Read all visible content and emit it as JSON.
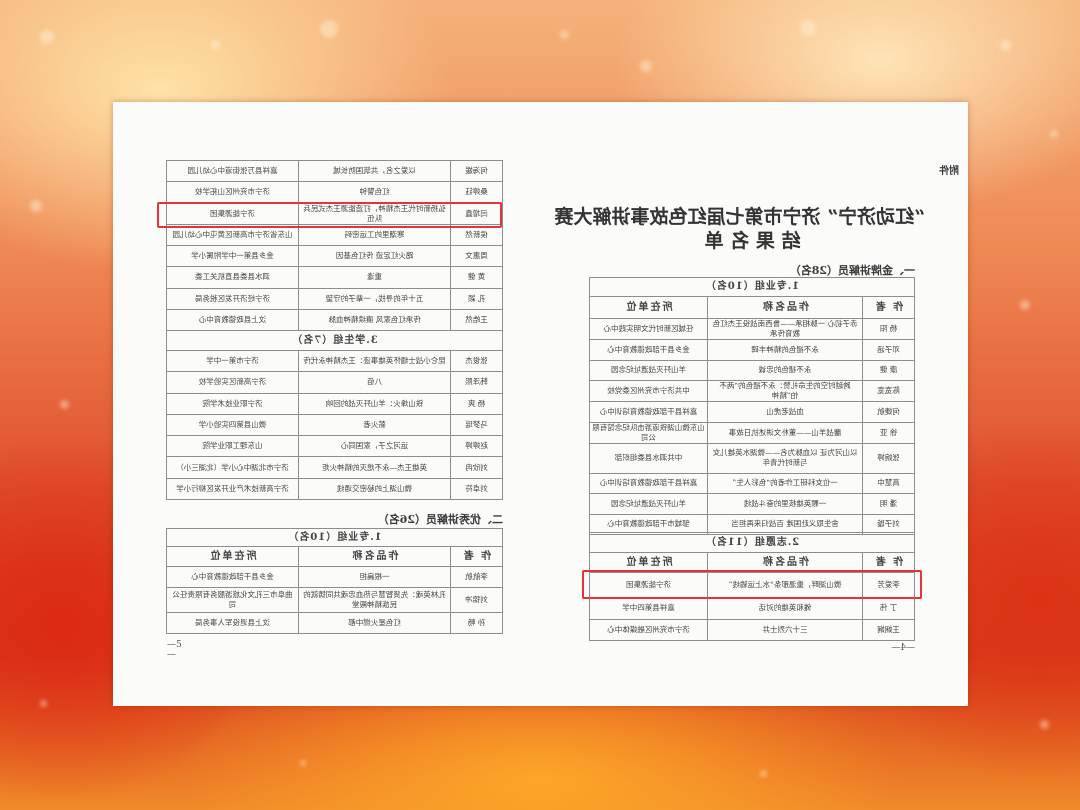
{
  "page4": {
    "attachment_label": "附件",
    "title_line1": "“红动济宁” 济宁市第七届红色故事讲解大赛",
    "title_line2": "结 果 名 单",
    "section": "一、金牌讲解员（28名）",
    "page_number": "—4—",
    "columns": [
      "作 者",
      "作品名称",
      "所在单位"
    ],
    "groups": [
      {
        "title": "1.专业组（10名）",
        "rows": [
          [
            "杨 阳",
            "赤子初心 一脉相承——鲁西南战役王杰红色教育传承",
            "任城区新时代文明实践中心"
          ],
          [
            "邓子涵",
            "永不褪色的精神丰碑",
            "金乡县干部政德教育中心"
          ],
          [
            "康 健",
            "永不褪色的忠诚",
            "羊山歼灭战遗址纪念园"
          ],
          [
            "陈宽宽",
            "跨越时空的生命礼赞：永不褪色的“两不怕”精神",
            "中共济宁市兖州区委党校"
          ],
          [
            "何婕航",
            "血战老虎山",
            "嘉祥县干部政德教育培训中心"
          ],
          [
            "徐 亚",
            "鏖战羊山——董朴文讲述抗日故事",
            "山东微山湖铁道游击队纪念馆有限公司"
          ],
          [
            "张婉婷",
            "以山河为证 以血脉为名——微湖水英雄儿女与新时代青年",
            "中共泗水县委组织部"
          ],
          [
            "高慧中",
            "一位女科研工作者的“色彩人生”",
            "嘉祥县干部政德教育培训中心"
          ],
          [
            "潘 明",
            "一颗英雄核里的奋斗战线",
            "羊山歼灭战遗址纪念园"
          ],
          [
            "刘子璇",
            "舍生取义赴国难 百战归来再担当",
            "邹城市干部政德教育中心"
          ]
        ]
      },
      {
        "title": "2.志愿组（11名）",
        "rows": [
          [
            "李爱芳",
            "微山湖畔，重温那条“水上运输线”",
            "济宁能源集团"
          ],
          [
            "丁 伟",
            "傩和英雄的对话",
            "嘉祥县第四中学"
          ],
          [
            "王娴娴",
            "三十六烈士井",
            "济宁市兖州区融媒体中心"
          ]
        ]
      }
    ]
  },
  "page5": {
    "page_number": "—5—",
    "section": "二、优秀讲解员（26名）",
    "columns": [
      "作 者",
      "作品名称",
      "所在单位"
    ],
    "continued_rows": [
      [
        "何海媛",
        "以爱之名，共筑国防长城",
        "嘉祥县万张街道中心幼儿园"
      ],
      [
        "桑婷钰",
        "红色警钟",
        "济宁市兖州区山拓学校"
      ],
      [
        "闫增鑫",
        "弘扬新时代王杰精神，打造能源王杰式民兵队伍",
        "济宁能源集团"
      ],
      [
        "侯新然",
        "寒潮里的工运密码",
        "山东省济宁市高新区黄屯中心幼儿园"
      ],
      [
        "周惠文",
        "踏火红足迹 传红色基因",
        "金乡县第一中学附属小学"
      ],
      [
        "黄 健",
        "重逢",
        "泗水县委县直机关工委"
      ],
      [
        "孔 颖",
        "五十年的寻找，一辈子的守望",
        "济宁经济开发区税务局"
      ],
      [
        "王皓然",
        "传承红色家风 赓续精神血脉",
        "汶上县政德教育中心"
      ]
    ],
    "student_group": {
      "title": "3.学生组（7名）",
      "rows": [
        [
          "张俊杰",
          "昆仑小战士缅怀英雄事迹：王杰精神永代传",
          "济宁市第一中学"
        ],
        [
          "韩泽熙",
          "八佰",
          "济宁高新区实验学校"
        ],
        [
          "杨 爽",
          "铁山烽火：羊山歼灭战的回响",
          "济宁职业技术学院"
        ],
        [
          "马梦瑶",
          "薪火者",
          "微山县第四实验小学"
        ],
        [
          "赵婷婷",
          "运河之子，家国同心",
          "山东理工职业学院"
        ],
        [
          "刘欣冉",
          "英雄王杰—永不熄灭的精神火炬",
          "济宁市北湖中心小学（北湖三小）"
        ],
        [
          "刘卓符",
          "微山湖上的秘密交通线",
          "济宁高新技术产业开发区柳行小学"
        ]
      ]
    },
    "excellent_group": {
      "title": "1.专业组（10名）",
      "rows": [
        [
          "李航航",
          "一根扁担",
          "金乡县干部政德教育中心"
        ],
        [
          "刘锦冲",
          "孔林英魂：先贤智慧与热血忠魂共同铸就的民族精神殿堂",
          "曲阜市三孔文化旅游服务有限责任公司"
        ],
        [
          "孙 畅",
          "红色星火燃中都",
          "汶上县退役军人事务局"
        ]
      ]
    }
  },
  "highlight_color": "#e8313a"
}
